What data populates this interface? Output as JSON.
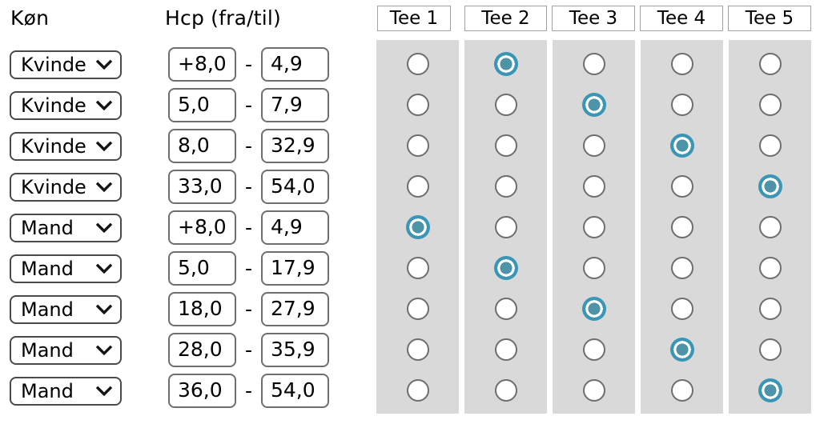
{
  "headers": {
    "gender": "Køn",
    "hcp": "Hcp (fra/til)"
  },
  "tee_headers": [
    "Tee 1",
    "Tee 2",
    "Tee 3",
    "Tee 4",
    "Tee 5"
  ],
  "separator": "-",
  "rows": [
    {
      "gender": "Kvinde",
      "hcp_from": "+8,0",
      "hcp_to": "4,9",
      "selected_tee": 2
    },
    {
      "gender": "Kvinde",
      "hcp_from": "5,0",
      "hcp_to": "7,9",
      "selected_tee": 3
    },
    {
      "gender": "Kvinde",
      "hcp_from": "8,0",
      "hcp_to": "32,9",
      "selected_tee": 4
    },
    {
      "gender": "Kvinde",
      "hcp_from": "33,0",
      "hcp_to": "54,0",
      "selected_tee": 5
    },
    {
      "gender": "Mand",
      "hcp_from": "+8,0",
      "hcp_to": "4,9",
      "selected_tee": 1
    },
    {
      "gender": "Mand",
      "hcp_from": "5,0",
      "hcp_to": "17,9",
      "selected_tee": 2
    },
    {
      "gender": "Mand",
      "hcp_from": "18,0",
      "hcp_to": "27,9",
      "selected_tee": 3
    },
    {
      "gender": "Mand",
      "hcp_from": "28,0",
      "hcp_to": "35,9",
      "selected_tee": 4
    },
    {
      "gender": "Mand",
      "hcp_from": "36,0",
      "hcp_to": "54,0",
      "selected_tee": 5
    }
  ],
  "colors": {
    "accent_teal_dot": "#4e94a8",
    "accent_teal_ring": "#3b95b4",
    "column_background": "#d9d9d9",
    "radio_border": "#6e6e6e"
  }
}
